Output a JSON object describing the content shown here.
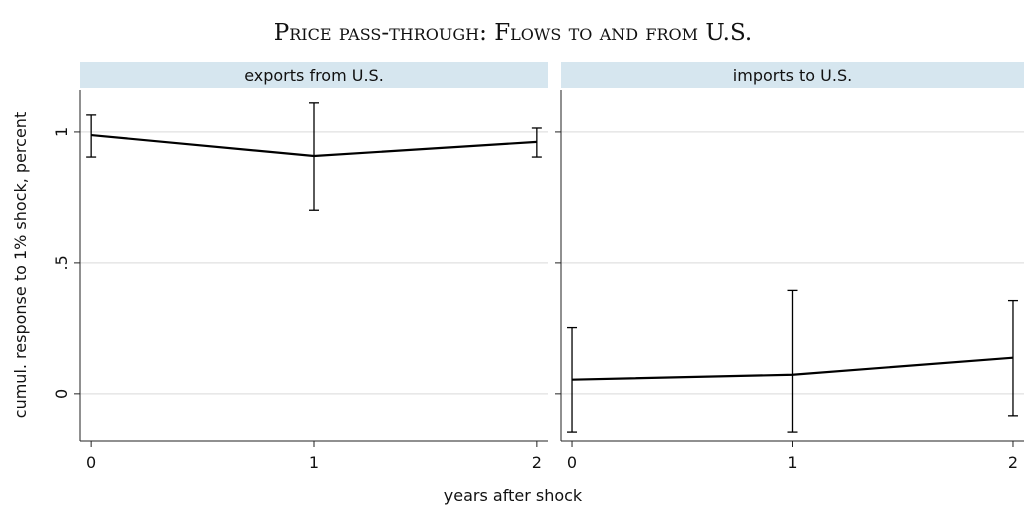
{
  "title": "Price pass-through: Flows to and from U.S.",
  "ylabel": "cumul. response to 1% shock, percent",
  "xlabel": "years after shock",
  "chart_data": [
    {
      "type": "line",
      "title": "exports from U.S.",
      "color": "#000000",
      "grid": true,
      "x": [
        0,
        1,
        2
      ],
      "values": [
        0.988,
        0.908,
        0.962
      ],
      "ci_low": [
        0.904,
        0.701,
        0.904
      ],
      "ci_high": [
        1.065,
        1.111,
        1.015
      ],
      "xlim": [
        -0.05,
        2.05
      ],
      "xticks": [
        0,
        1,
        2
      ],
      "ylim": [
        -0.18,
        1.16
      ],
      "yticks": [
        0,
        {
          "value": 0.5,
          "label": ".5"
        },
        1
      ]
    },
    {
      "type": "line",
      "title": "imports to U.S.",
      "color": "#000000",
      "grid": true,
      "x": [
        0,
        1,
        2
      ],
      "values": [
        0.054,
        0.073,
        0.138
      ],
      "ci_low": [
        -0.146,
        -0.146,
        -0.084
      ],
      "ci_high": [
        0.253,
        0.395,
        0.356
      ],
      "xlim": [
        -0.05,
        2.05
      ],
      "xticks": [
        0,
        1,
        2
      ],
      "ylim": [
        -0.18,
        1.16
      ],
      "yticks": [
        0,
        0.5,
        1
      ]
    }
  ]
}
